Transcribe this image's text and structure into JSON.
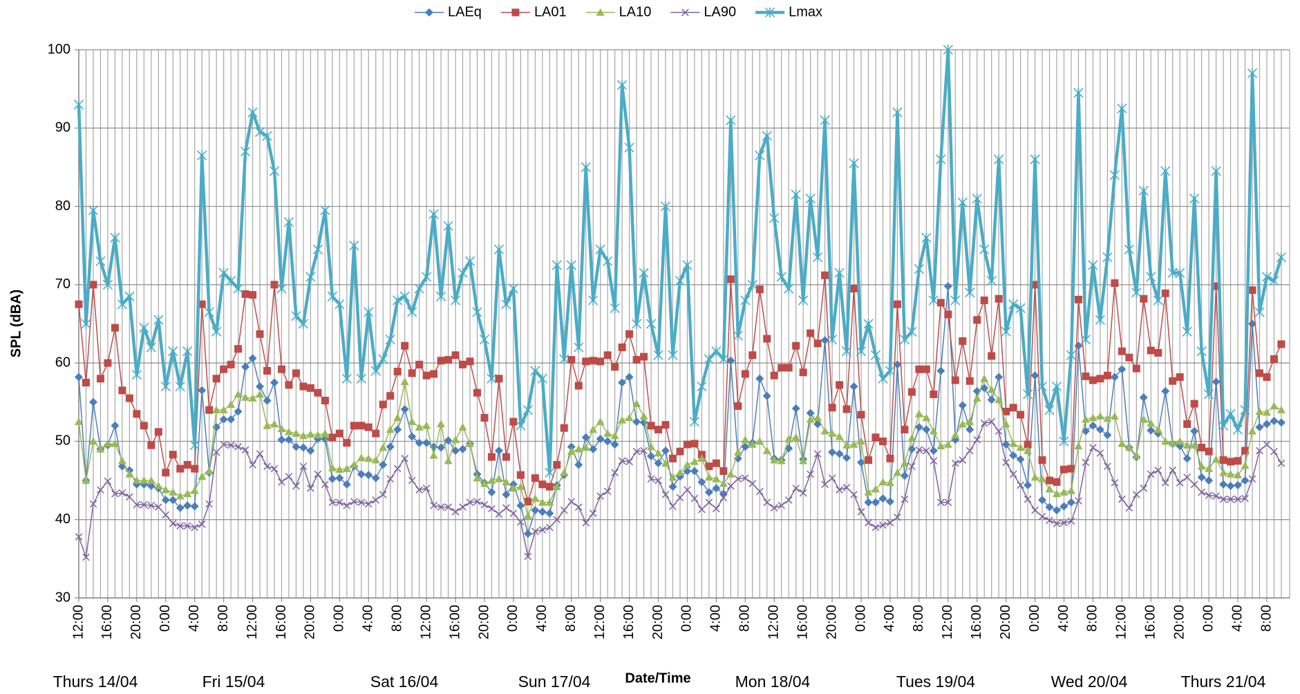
{
  "chart_data": {
    "type": "line",
    "y_label": "SPL (dBA)",
    "x_label": "Date/Time",
    "date_labels": [
      "Thurs 14/04",
      "Fri 15/04",
      "Sat 16/04",
      "Sun 17/04",
      "Mon 18/04",
      "Tues 19/04",
      "Wed 20/04",
      "Thurs 21/04"
    ],
    "ylim": [
      30,
      100
    ],
    "yticks": [
      30,
      40,
      50,
      60,
      70,
      80,
      90,
      100
    ],
    "grid": true,
    "legend": "top",
    "categories": [
      "12:00",
      null,
      null,
      null,
      "16:00",
      null,
      null,
      null,
      "20:00",
      null,
      null,
      null,
      "0:00",
      null,
      null,
      null,
      "4:00",
      null,
      null,
      null,
      "8:00",
      null,
      null,
      null,
      "12:00",
      null,
      null,
      null,
      "16:00",
      null,
      null,
      null,
      "20:00",
      null,
      null,
      null,
      "0:00",
      null,
      null,
      null,
      "4:00",
      null,
      null,
      null,
      "8:00",
      null,
      null,
      null,
      "12:00",
      null,
      null,
      null,
      "16:00",
      null,
      null,
      null,
      "20:00",
      null,
      null,
      null,
      "0:00",
      null,
      null,
      null,
      "4:00",
      null,
      null,
      null,
      "8:00",
      null,
      null,
      null,
      "12:00",
      null,
      null,
      null,
      "16:00",
      null,
      null,
      null,
      "20:00",
      null,
      null,
      null,
      "0:00",
      null,
      null,
      null,
      "4:00",
      null,
      null,
      null,
      "8:00",
      null,
      null,
      null,
      "12:00",
      null,
      null,
      null,
      "16:00",
      null,
      null,
      null,
      "20:00",
      null,
      null,
      null,
      "0:00",
      null,
      null,
      null,
      "4:00",
      null,
      null,
      null,
      "8:00",
      null,
      null,
      null,
      "12:00",
      null,
      null,
      null,
      "16:00",
      null,
      null,
      null,
      "20:00",
      null,
      null,
      null,
      "0:00",
      null,
      null,
      null,
      "4:00",
      null,
      null,
      null,
      "8:00",
      null,
      null,
      null,
      "12:00",
      null,
      null,
      null,
      "16:00",
      null,
      null,
      null,
      "20:00",
      null,
      null,
      null,
      "0:00",
      null,
      null,
      null,
      "4:00",
      null,
      null,
      null,
      "8:00",
      null,
      null
    ],
    "series": [
      {
        "name": "LAEq",
        "color": "#4a7ebb",
        "marker": "diamond",
        "width": 1.5,
        "values": [
          58.2,
          45,
          55,
          49,
          49.5,
          52,
          46.8,
          46.3,
          44.5,
          44.5,
          44.3,
          44,
          42.5,
          42.5,
          41.5,
          41.8,
          41.7,
          56.5,
          46,
          51.8,
          52.8,
          52.8,
          53.8,
          59.5,
          60.6,
          57,
          55.2,
          57.5,
          50.2,
          50.2,
          49.3,
          49.2,
          48.8,
          50.3,
          50.3,
          45.2,
          45.3,
          44.5,
          46.8,
          45.8,
          45.7,
          45.3,
          47,
          49.3,
          51.5,
          54.1,
          50.6,
          49.8,
          49.8,
          49.3,
          49.2,
          50.1,
          48.8,
          49,
          49.7,
          45.8,
          44.7,
          43.5,
          48.8,
          43.2,
          44.5,
          41.8,
          38.2,
          41.2,
          41,
          40.8,
          44.4,
          45.7,
          49.3,
          47,
          50.5,
          49,
          50.3,
          50,
          49.6,
          57.5,
          58.2,
          52.5,
          52.4,
          48.1,
          47.2,
          48.8,
          44.2,
          45.5,
          46.2,
          46.2,
          44.8,
          43.5,
          44,
          43.3,
          60.3,
          47.8,
          49.3,
          49.8,
          58,
          55.8,
          47.8,
          47.6,
          49.1,
          54.2,
          47.7,
          53.6,
          52.2,
          62.9,
          48.6,
          48.4,
          47.9,
          57,
          47.3,
          42.2,
          42.2,
          42.7,
          42.3,
          59.8,
          45.6,
          49,
          51.8,
          51.5,
          48.8,
          59,
          69.8,
          50.2,
          54.6,
          51.5,
          56.4,
          56.8,
          55.3,
          58.2,
          49.6,
          48.2,
          47.7,
          44.4,
          58.4,
          42.5,
          41.6,
          41.2,
          41.7,
          42.2,
          62.2,
          51.3,
          52,
          51.5,
          50.8,
          58.2,
          59.2,
          49.2,
          48,
          55.6,
          51.4,
          51,
          56.4,
          49.7,
          49.4,
          47.8,
          51.3,
          45.4,
          45,
          57.6,
          44.5,
          44.3,
          44.4,
          45,
          65,
          51.8,
          52.2,
          52.6,
          52.4
        ]
      },
      {
        "name": "LA01",
        "color": "#be4b48",
        "marker": "square",
        "width": 1.5,
        "values": [
          67.5,
          57.5,
          70,
          58,
          60,
          64.5,
          56.5,
          55.5,
          53.5,
          52,
          49.5,
          51.2,
          46,
          48.3,
          46.5,
          47,
          46.5,
          67.5,
          54,
          58,
          59.2,
          59.8,
          61.8,
          68.8,
          68.7,
          63.7,
          59,
          70,
          59.2,
          57.2,
          58.7,
          57,
          56.8,
          56.2,
          55.2,
          50.5,
          51,
          49.8,
          52,
          52,
          51.8,
          51,
          54.7,
          55.8,
          58.9,
          62.2,
          58.7,
          59.8,
          58.4,
          58.6,
          60.3,
          60.4,
          61,
          59.8,
          60.2,
          56.2,
          53,
          48,
          58,
          48,
          52.5,
          45.7,
          42.3,
          45.3,
          44.5,
          44.2,
          47,
          51.7,
          60.4,
          57.1,
          60.2,
          60.3,
          60.2,
          61,
          59.5,
          62,
          63.7,
          60.4,
          60.8,
          52,
          51.5,
          52.1,
          47.8,
          48.7,
          49.6,
          49.7,
          48.3,
          46.8,
          47.2,
          46.2,
          70.7,
          54.5,
          58.6,
          61,
          69.4,
          63.1,
          58.4,
          59.4,
          59.4,
          62.2,
          58.8,
          63.8,
          62.5,
          71.2,
          54.3,
          57.2,
          54.1,
          69.5,
          53.4,
          47.6,
          50.5,
          50,
          47.8,
          67.5,
          51.5,
          56.3,
          59.2,
          59.2,
          56,
          67.7,
          66.2,
          57.8,
          62.8,
          57.7,
          65.5,
          68,
          60.9,
          68.2,
          53.8,
          54.3,
          53.4,
          49.6,
          70,
          47.6,
          45,
          44.8,
          46.4,
          46.5,
          68.1,
          58.3,
          57.8,
          58,
          58.4,
          70.2,
          61.5,
          60.7,
          59.3,
          68.2,
          61.6,
          61.3,
          68.9,
          57.7,
          58.2,
          52.2,
          54.8,
          49.2,
          48.7,
          69.8,
          47.6,
          47.4,
          47.5,
          48.8,
          69.3,
          58.7,
          58.2,
          60.5,
          62.4
        ]
      },
      {
        "name": "LA10",
        "color": "#98b954",
        "marker": "triangle",
        "width": 1.5,
        "values": [
          52.5,
          45,
          50,
          49,
          49.7,
          49.7,
          47.5,
          45.8,
          45,
          45,
          45,
          44.3,
          43.8,
          43.5,
          43,
          43.3,
          43.7,
          45.5,
          46.2,
          54,
          54,
          54.7,
          56,
          55.6,
          55.5,
          56,
          52,
          52.2,
          51.6,
          51.2,
          51,
          50.7,
          50.9,
          50.8,
          51,
          46.6,
          46.4,
          46.5,
          47,
          47.9,
          47.8,
          47.6,
          49.2,
          51.5,
          53,
          57.6,
          52.5,
          51.8,
          52,
          48.2,
          52.2,
          47.5,
          50.2,
          51.8,
          49.7,
          45.3,
          44.6,
          45,
          45.2,
          44.8,
          44,
          44.2,
          40.5,
          42.7,
          42.2,
          42.2,
          44.2,
          46,
          48.7,
          49,
          49.2,
          51.5,
          52.5,
          51,
          50.7,
          52.7,
          53,
          54.8,
          53.2,
          49.3,
          48.5,
          47.2,
          45.4,
          46,
          47,
          47.4,
          47.8,
          45.4,
          45.2,
          44.6,
          45.8,
          48.6,
          50.2,
          49.6,
          50,
          48.8,
          47.6,
          47.5,
          50.3,
          50.5,
          47.5,
          52.8,
          53,
          51.3,
          51,
          50.6,
          49.5,
          49.6,
          50,
          43.5,
          43.9,
          44.8,
          44.7,
          46,
          47.2,
          50.4,
          53.5,
          53,
          51.3,
          49.4,
          49.6,
          50.8,
          52.2,
          52.5,
          55.5,
          58,
          56.6,
          55.3,
          52.2,
          49.7,
          49.2,
          48.8,
          45.4,
          45.2,
          43.9,
          43.3,
          43.5,
          43.7,
          49.4,
          52.8,
          53,
          53.2,
          52.9,
          53.2,
          49.7,
          49.2,
          48.2,
          52.8,
          52.3,
          51.5,
          50,
          49.8,
          50,
          49.5,
          49.5,
          46.8,
          46.5,
          47.7,
          46,
          45.8,
          45.7,
          46.9,
          51.3,
          53.8,
          53.7,
          54.5,
          54
        ]
      },
      {
        "name": "LA90",
        "color": "#7d60a0",
        "marker": "x",
        "width": 1.5,
        "values": [
          37.8,
          35.2,
          42,
          43.8,
          44.9,
          43.3,
          43.4,
          42.9,
          41.9,
          41.9,
          41.8,
          41.6,
          40.6,
          39.5,
          39.2,
          39.2,
          39,
          39.4,
          42,
          48.6,
          49.6,
          49.5,
          49.3,
          48.9,
          47,
          48.4,
          46.8,
          46.5,
          44.8,
          45.5,
          44.3,
          46.8,
          44,
          45.8,
          44.5,
          42.2,
          42.2,
          41.8,
          42.3,
          42.2,
          42,
          42.5,
          43.2,
          45.2,
          46.5,
          47.8,
          45,
          43.8,
          44,
          41.8,
          41.6,
          41.6,
          41,
          41.6,
          42.2,
          42.3,
          41.9,
          41.4,
          40.7,
          41.5,
          40.8,
          39.7,
          35.3,
          38.5,
          38.7,
          39,
          40,
          41.2,
          42.3,
          41.6,
          39.6,
          40.8,
          43,
          43.6,
          46,
          47.5,
          47.4,
          48.7,
          48.8,
          45.2,
          45,
          43.2,
          41.7,
          42.8,
          43.8,
          42.7,
          41.3,
          42.2,
          41.4,
          42.8,
          44.3,
          45.2,
          45.3,
          44.6,
          43.6,
          42.2,
          41.5,
          41.8,
          42.5,
          44,
          43.4,
          45.8,
          48.4,
          44.5,
          45.3,
          43.8,
          44.1,
          43.2,
          41,
          39.6,
          39,
          39.3,
          39.6,
          40.3,
          42.6,
          46.8,
          48.9,
          48.8,
          47.5,
          42.2,
          42.2,
          47.2,
          47.6,
          48.8,
          50.2,
          52.3,
          52.5,
          51.3,
          47.3,
          45.8,
          44.4,
          42.6,
          41.2,
          40.4,
          39.9,
          39.5,
          39.6,
          39.8,
          42.4,
          47.3,
          49.2,
          48.5,
          46.8,
          44.7,
          42.6,
          41.5,
          43.2,
          44,
          45.8,
          46.3,
          44.7,
          46.3,
          44.7,
          45.4,
          44.5,
          43.5,
          43.1,
          43,
          42.6,
          42.6,
          42.6,
          42.7,
          45.2,
          48.8,
          49.6,
          48.7,
          47.2
        ]
      },
      {
        "name": "Lmax",
        "color": "#4bacc6",
        "marker": "asterisk",
        "width": 4.5,
        "values": [
          93,
          65,
          79.5,
          73,
          70,
          76,
          67.5,
          68.5,
          58.5,
          64.5,
          62,
          65.5,
          57,
          61.5,
          57,
          61.5,
          49.5,
          86.5,
          66.5,
          64,
          71.5,
          70.5,
          69.5,
          87,
          92,
          89.5,
          89,
          84.5,
          69.5,
          78,
          66,
          65,
          71,
          74.5,
          79.5,
          68.5,
          67.5,
          58,
          75,
          58,
          66.5,
          59,
          60.5,
          63,
          68,
          68.5,
          66.5,
          69.5,
          71,
          79,
          68.5,
          77.5,
          68,
          71.5,
          73,
          66.5,
          63,
          58,
          74.5,
          67.5,
          69.5,
          52,
          54,
          59,
          58,
          46,
          72.5,
          60.5,
          72.5,
          62,
          85,
          68,
          74.5,
          73,
          67,
          95.5,
          87.5,
          65,
          71.5,
          65,
          61,
          80,
          61,
          70.5,
          72.5,
          52.5,
          57,
          60.5,
          61.5,
          60.5,
          91,
          63.5,
          68,
          70,
          86.5,
          89,
          78.5,
          71,
          69.5,
          81.5,
          68,
          81,
          73.5,
          91,
          63,
          71.5,
          61.5,
          85.5,
          61.5,
          65,
          61,
          58,
          59,
          92,
          63,
          64,
          72,
          76,
          68,
          86,
          100,
          68,
          80.5,
          69,
          81,
          74.5,
          70.5,
          86,
          64,
          67.5,
          67,
          56,
          86,
          57,
          54,
          57,
          50,
          61,
          94.5,
          63,
          72.5,
          65.5,
          73.5,
          84,
          92.5,
          74.5,
          69,
          82,
          71,
          68,
          84.5,
          71.5,
          71.5,
          64,
          81,
          61.5,
          56,
          84.5,
          52,
          53.5,
          51.5,
          54,
          97,
          66.5,
          71,
          70.5,
          73.5
        ]
      }
    ]
  }
}
